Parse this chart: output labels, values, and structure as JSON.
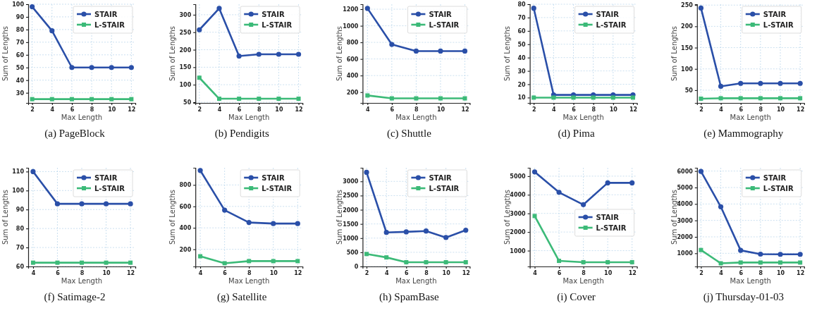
{
  "chart_data": [
    {
      "type": "line",
      "title": "(a) PageBlock",
      "xlabel": "Max Length",
      "ylabel": "Sum of Lengths",
      "x": [
        2,
        4,
        6,
        8,
        10,
        12
      ],
      "xlim": [
        1.6,
        12.4
      ],
      "xticks": [
        2,
        4,
        6,
        8,
        10,
        12
      ],
      "ylim": [
        22,
        100
      ],
      "yticks": [
        30,
        40,
        50,
        60,
        70,
        80,
        90,
        100
      ],
      "grid": true,
      "legend": "top right",
      "series": [
        {
          "name": "STAIR",
          "color": "#2a4fa8",
          "marker": "circle",
          "values": [
            98,
            79,
            50,
            50,
            50,
            50
          ]
        },
        {
          "name": "L-STAIR",
          "color": "#3cba78",
          "marker": "square",
          "values": [
            25,
            25,
            25,
            25,
            25,
            25
          ]
        }
      ]
    },
    {
      "type": "line",
      "title": "(b) Pendigits",
      "xlabel": "Max Length",
      "ylabel": "Sum of Lengths",
      "x": [
        2,
        4,
        6,
        8,
        10,
        12
      ],
      "xlim": [
        1.6,
        12.4
      ],
      "xticks": [
        2,
        4,
        6,
        8,
        10,
        12
      ],
      "ylim": [
        48,
        330
      ],
      "yticks": [
        50,
        100,
        150,
        200,
        250,
        300
      ],
      "grid": true,
      "legend": "top right",
      "series": [
        {
          "name": "STAIR",
          "color": "#2a4fa8",
          "marker": "circle",
          "values": [
            257,
            318,
            182,
            187,
            187,
            187
          ]
        },
        {
          "name": "L-STAIR",
          "color": "#3cba78",
          "marker": "square",
          "values": [
            120,
            60,
            60,
            60,
            60,
            60
          ]
        }
      ]
    },
    {
      "type": "line",
      "title": "(c) Shuttle",
      "xlabel": "Max Length",
      "ylabel": "Sum of Lengths",
      "x": [
        4,
        6,
        8,
        10,
        12
      ],
      "xlim": [
        3.6,
        12.4
      ],
      "xticks": [
        4,
        6,
        8,
        10,
        12
      ],
      "ylim": [
        70,
        1260
      ],
      "yticks": [
        200,
        400,
        600,
        800,
        1000,
        1200
      ],
      "grid": true,
      "legend": "top right",
      "series": [
        {
          "name": "STAIR",
          "color": "#2a4fa8",
          "marker": "circle",
          "values": [
            1210,
            775,
            695,
            695,
            695
          ]
        },
        {
          "name": "L-STAIR",
          "color": "#3cba78",
          "marker": "square",
          "values": [
            160,
            125,
            125,
            125,
            125
          ]
        }
      ]
    },
    {
      "type": "line",
      "title": "(d) Pima",
      "xlabel": "Max Length",
      "ylabel": "Sum of Lengths",
      "x": [
        2,
        4,
        6,
        8,
        10,
        12
      ],
      "xlim": [
        1.6,
        12.4
      ],
      "xticks": [
        2,
        4,
        6,
        8,
        10,
        12
      ],
      "ylim": [
        6,
        80
      ],
      "yticks": [
        10,
        20,
        30,
        40,
        50,
        60,
        70,
        80
      ],
      "grid": true,
      "legend": "top right",
      "series": [
        {
          "name": "STAIR",
          "color": "#2a4fa8",
          "marker": "circle",
          "values": [
            77,
            12,
            12,
            12,
            12,
            12
          ]
        },
        {
          "name": "L-STAIR",
          "color": "#3cba78",
          "marker": "square",
          "values": [
            10,
            10,
            10,
            10,
            10,
            10
          ]
        }
      ]
    },
    {
      "type": "line",
      "title": "(e) Mammography",
      "xlabel": "Max Length",
      "ylabel": "Sum of Lengths",
      "x": [
        2,
        4,
        6,
        8,
        10,
        12
      ],
      "xlim": [
        1.6,
        12.4
      ],
      "xticks": [
        2,
        4,
        6,
        8,
        10,
        12
      ],
      "ylim": [
        20,
        252
      ],
      "yticks": [
        50,
        100,
        150,
        200,
        250
      ],
      "grid": true,
      "legend": "top right",
      "series": [
        {
          "name": "STAIR",
          "color": "#2a4fa8",
          "marker": "circle",
          "values": [
            243,
            59,
            66,
            66,
            66,
            66
          ]
        },
        {
          "name": "L-STAIR",
          "color": "#3cba78",
          "marker": "square",
          "values": [
            30,
            31,
            31,
            31,
            31,
            31
          ]
        }
      ]
    },
    {
      "type": "line",
      "title": "(f) Satimage-2",
      "xlabel": "Max Length",
      "ylabel": "Sum of Lengths",
      "x": [
        4,
        6,
        8,
        10,
        12
      ],
      "xlim": [
        3.6,
        12.4
      ],
      "xticks": [
        4,
        6,
        8,
        10,
        12
      ],
      "ylim": [
        60,
        112
      ],
      "yticks": [
        60,
        70,
        80,
        90,
        100,
        110
      ],
      "grid": true,
      "legend": "top right",
      "series": [
        {
          "name": "STAIR",
          "color": "#2a4fa8",
          "marker": "circle",
          "values": [
            110,
            93,
            93,
            93,
            93
          ]
        },
        {
          "name": "L-STAIR",
          "color": "#3cba78",
          "marker": "square",
          "values": [
            62,
            62,
            62,
            62,
            62
          ]
        }
      ]
    },
    {
      "type": "line",
      "title": "(g) Satellite",
      "xlabel": "Max Length",
      "ylabel": "Sum of Lengths",
      "x": [
        4,
        6,
        8,
        10,
        12
      ],
      "xlim": [
        3.6,
        12.4
      ],
      "xticks": [
        4,
        6,
        8,
        10,
        12
      ],
      "ylim": [
        40,
        960
      ],
      "yticks": [
        200,
        400,
        600,
        800
      ],
      "grid": true,
      "legend": "top right",
      "series": [
        {
          "name": "STAIR",
          "color": "#2a4fa8",
          "marker": "circle",
          "values": [
            935,
            565,
            450,
            440,
            440
          ]
        },
        {
          "name": "L-STAIR",
          "color": "#3cba78",
          "marker": "square",
          "values": [
            135,
            70,
            90,
            90,
            90
          ]
        }
      ]
    },
    {
      "type": "line",
      "title": "(h) SpamBase",
      "xlabel": "Max Length",
      "ylabel": "Sum of Lengths",
      "x": [
        2,
        4,
        6,
        8,
        10,
        12
      ],
      "xlim": [
        1.6,
        12.4
      ],
      "xticks": [
        2,
        4,
        6,
        8,
        10,
        12
      ],
      "ylim": [
        0,
        3480
      ],
      "yticks": [
        0,
        500,
        1000,
        1500,
        2000,
        2500,
        3000
      ],
      "grid": true,
      "legend": "top right",
      "series": [
        {
          "name": "STAIR",
          "color": "#2a4fa8",
          "marker": "circle",
          "values": [
            3320,
            1200,
            1220,
            1250,
            1020,
            1280
          ]
        },
        {
          "name": "L-STAIR",
          "color": "#3cba78",
          "marker": "square",
          "values": [
            440,
            320,
            150,
            150,
            150,
            150
          ]
        }
      ]
    },
    {
      "type": "line",
      "title": "(i) Cover",
      "xlabel": "Max Length",
      "ylabel": "Sum of Lengths",
      "x": [
        4,
        6,
        8,
        10,
        12
      ],
      "xlim": [
        3.6,
        12.4
      ],
      "xticks": [
        4,
        6,
        8,
        10,
        12
      ],
      "ylim": [
        150,
        5450
      ],
      "yticks": [
        1000,
        2000,
        3000,
        4000,
        5000
      ],
      "grid": true,
      "legend": "right",
      "series": [
        {
          "name": "STAIR",
          "color": "#2a4fa8",
          "marker": "circle",
          "values": [
            5230,
            4130,
            3470,
            4640,
            4640
          ]
        },
        {
          "name": "L-STAIR",
          "color": "#3cba78",
          "marker": "square",
          "values": [
            2860,
            450,
            380,
            380,
            380
          ]
        }
      ]
    },
    {
      "type": "line",
      "title": "(j) Thursday-01-03",
      "xlabel": "Max Length",
      "ylabel": "Sum of Lengths",
      "x": [
        2,
        4,
        6,
        8,
        10,
        12
      ],
      "xlim": [
        1.6,
        12.4
      ],
      "xticks": [
        2,
        4,
        6,
        8,
        10,
        12
      ],
      "ylim": [
        200,
        6200
      ],
      "yticks": [
        1000,
        2000,
        3000,
        4000,
        5000,
        6000
      ],
      "grid": true,
      "legend": "top right",
      "series": [
        {
          "name": "STAIR",
          "color": "#2a4fa8",
          "marker": "circle",
          "values": [
            5980,
            3830,
            1180,
            950,
            940,
            940
          ]
        },
        {
          "name": "L-STAIR",
          "color": "#3cba78",
          "marker": "square",
          "values": [
            1200,
            390,
            440,
            440,
            440,
            440
          ]
        }
      ]
    }
  ]
}
